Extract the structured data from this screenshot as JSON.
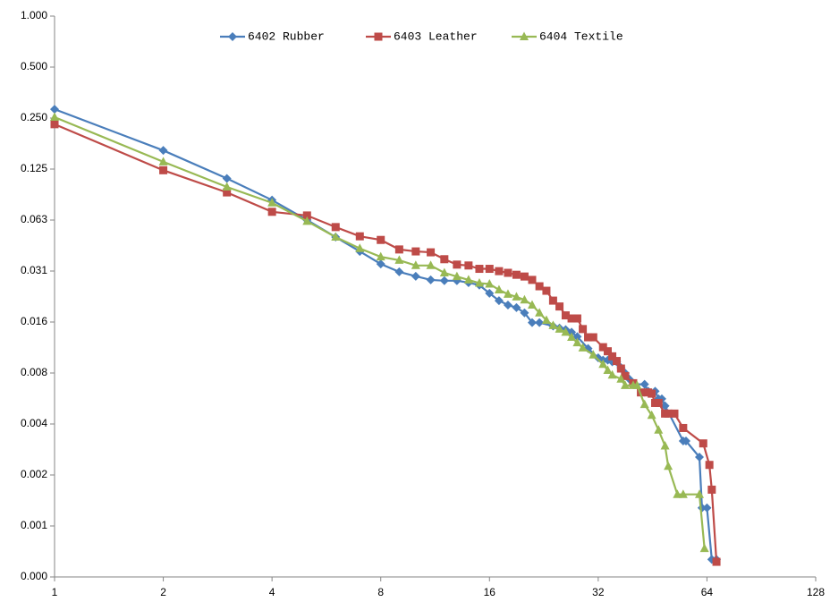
{
  "chart_data": {
    "type": "line",
    "xlog_base": 2,
    "ylog_base": 2,
    "legend": "top",
    "xlim": [
      1,
      128
    ],
    "xticks": [
      1,
      2,
      4,
      8,
      16,
      32,
      64,
      128
    ],
    "ylim": [
      0.00048828125,
      1
    ],
    "yticks": [
      {
        "value": 1,
        "label": "1.000"
      },
      {
        "value": 0.5,
        "label": "0.500"
      },
      {
        "value": 0.25,
        "label": "0.250"
      },
      {
        "value": 0.125,
        "label": "0.125"
      },
      {
        "value": 0.0625,
        "label": "0.063"
      },
      {
        "value": 0.03125,
        "label": "0.031"
      },
      {
        "value": 0.015625,
        "label": "0.016"
      },
      {
        "value": 0.0078125,
        "label": "0.008"
      },
      {
        "value": 0.00390625,
        "label": "0.004"
      },
      {
        "value": 0.001953125,
        "label": "0.002"
      },
      {
        "value": 0.0009765625,
        "label": "0.001"
      },
      {
        "value": 0.00048828125,
        "label": "0.000"
      }
    ],
    "series": [
      {
        "name": "6402 Rubber",
        "color": "#4a7ebb",
        "marker": "diamond",
        "x": [
          1,
          2,
          3,
          4,
          5,
          6,
          7,
          8,
          9,
          10,
          11,
          12,
          13,
          14,
          15,
          16,
          17,
          18,
          19,
          20,
          21,
          22,
          24,
          25,
          26,
          27,
          28,
          30,
          32,
          33,
          34,
          35,
          36,
          37,
          38,
          39,
          40,
          43,
          44,
          46,
          47,
          48,
          49,
          55,
          56,
          61,
          62,
          64,
          66,
          68
        ],
        "values": [
          0.282,
          0.161,
          0.11,
          0.082,
          0.0625,
          0.0496,
          0.0408,
          0.0344,
          0.0309,
          0.0291,
          0.0277,
          0.0274,
          0.0274,
          0.0267,
          0.0258,
          0.0231,
          0.0209,
          0.0197,
          0.019,
          0.0177,
          0.0155,
          0.0155,
          0.0148,
          0.0144,
          0.0141,
          0.0136,
          0.0128,
          0.0109,
          0.0096,
          0.0093,
          0.0093,
          0.0091,
          0.0091,
          0.0084,
          0.0078,
          0.0072,
          0.0067,
          0.0067,
          0.0061,
          0.0061,
          0.0055,
          0.0055,
          0.005,
          0.0031,
          0.0031,
          0.00249,
          0.00125,
          0.00125,
          0.00062,
          0.00062
        ]
      },
      {
        "name": "6403 Leather",
        "color": "#be4b48",
        "marker": "square",
        "x": [
          1,
          2,
          3,
          4,
          5,
          6,
          7,
          8,
          9,
          10,
          11,
          12,
          13,
          14,
          15,
          16,
          17,
          18,
          19,
          20,
          21,
          22,
          23,
          24,
          25,
          26,
          27,
          28,
          29,
          30,
          31,
          33,
          34,
          35,
          36,
          37,
          38,
          40,
          42,
          44,
          45,
          46,
          47,
          49,
          50,
          52,
          55,
          62.5,
          65,
          66,
          68
        ],
        "values": [
          0.23,
          0.123,
          0.091,
          0.0699,
          0.0665,
          0.0568,
          0.0501,
          0.0477,
          0.0419,
          0.0408,
          0.0403,
          0.0367,
          0.0341,
          0.0337,
          0.0322,
          0.0322,
          0.0312,
          0.0305,
          0.0297,
          0.029,
          0.0277,
          0.0254,
          0.0239,
          0.0209,
          0.0193,
          0.0171,
          0.0164,
          0.0164,
          0.0142,
          0.0127,
          0.0127,
          0.0111,
          0.0105,
          0.0098,
          0.0092,
          0.0083,
          0.0075,
          0.0068,
          0.006,
          0.006,
          0.0059,
          0.0052,
          0.0052,
          0.0045,
          0.0045,
          0.0045,
          0.0037,
          0.003,
          0.00224,
          0.0016,
          0.0006
        ]
      },
      {
        "name": "6404 Textile",
        "color": "#98b954",
        "marker": "triangle",
        "x": [
          1,
          2,
          3,
          4,
          5,
          6,
          7,
          8,
          9,
          10,
          11,
          12,
          13,
          14,
          15,
          16,
          17,
          18,
          19,
          20,
          21,
          22,
          23,
          24,
          25,
          26,
          27,
          28,
          29,
          31,
          33,
          34,
          35,
          37,
          38,
          40,
          41,
          43,
          45,
          47,
          49,
          50,
          53,
          55,
          61,
          63
        ],
        "values": [
          0.253,
          0.138,
          0.098,
          0.079,
          0.0615,
          0.0496,
          0.0425,
          0.0379,
          0.0362,
          0.0337,
          0.0337,
          0.0305,
          0.029,
          0.0277,
          0.0265,
          0.0262,
          0.0242,
          0.0228,
          0.022,
          0.0211,
          0.0197,
          0.0177,
          0.016,
          0.0149,
          0.0142,
          0.0136,
          0.0127,
          0.0118,
          0.011,
          0.01,
          0.0088,
          0.0081,
          0.0076,
          0.0072,
          0.0066,
          0.0066,
          0.0066,
          0.0051,
          0.0044,
          0.0036,
          0.0029,
          0.0022,
          0.0015,
          0.0015,
          0.0015,
          0.00072
        ]
      }
    ]
  }
}
